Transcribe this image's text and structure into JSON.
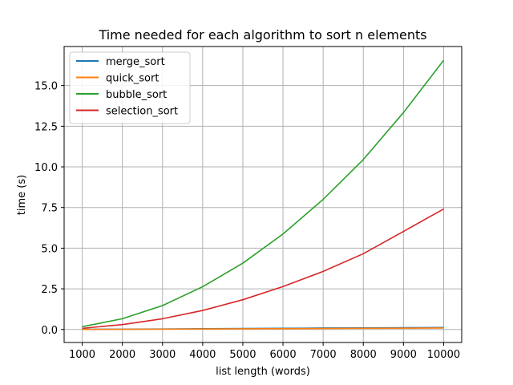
{
  "chart_data": {
    "type": "line",
    "title": "Time needed for each algorithm to sort n elements",
    "xlabel": "list length (words)",
    "ylabel": "time (s)",
    "x": [
      1000,
      2000,
      3000,
      4000,
      5000,
      6000,
      7000,
      8000,
      9000,
      10000
    ],
    "x_ticks": [
      1000,
      2000,
      3000,
      4000,
      5000,
      6000,
      7000,
      8000,
      9000,
      10000
    ],
    "y_ticks": [
      0.0,
      2.5,
      5.0,
      7.5,
      10.0,
      12.5,
      15.0
    ],
    "y_tick_labels": [
      "0.0",
      "2.5",
      "5.0",
      "7.5",
      "10.0",
      "12.5",
      "15.0"
    ],
    "xlim": [
      550,
      10450
    ],
    "ylim": [
      -0.8,
      17.4
    ],
    "grid": true,
    "legend_position": "top-left",
    "series": [
      {
        "name": "merge_sort",
        "color": "#1f77b4",
        "values": [
          0.01,
          0.02,
          0.03,
          0.05,
          0.06,
          0.07,
          0.09,
          0.1,
          0.11,
          0.12
        ]
      },
      {
        "name": "quick_sort",
        "color": "#ff7f0e",
        "values": [
          0.005,
          0.01,
          0.02,
          0.03,
          0.04,
          0.05,
          0.06,
          0.07,
          0.08,
          0.09
        ]
      },
      {
        "name": "bubble_sort",
        "color": "#2ca02c",
        "values": [
          0.17,
          0.66,
          1.47,
          2.63,
          4.08,
          5.87,
          8.0,
          10.45,
          13.34,
          16.55
        ]
      },
      {
        "name": "selection_sort",
        "color": "#d62728",
        "values": [
          0.07,
          0.3,
          0.66,
          1.17,
          1.83,
          2.64,
          3.57,
          4.66,
          6.03,
          7.41
        ]
      }
    ]
  }
}
